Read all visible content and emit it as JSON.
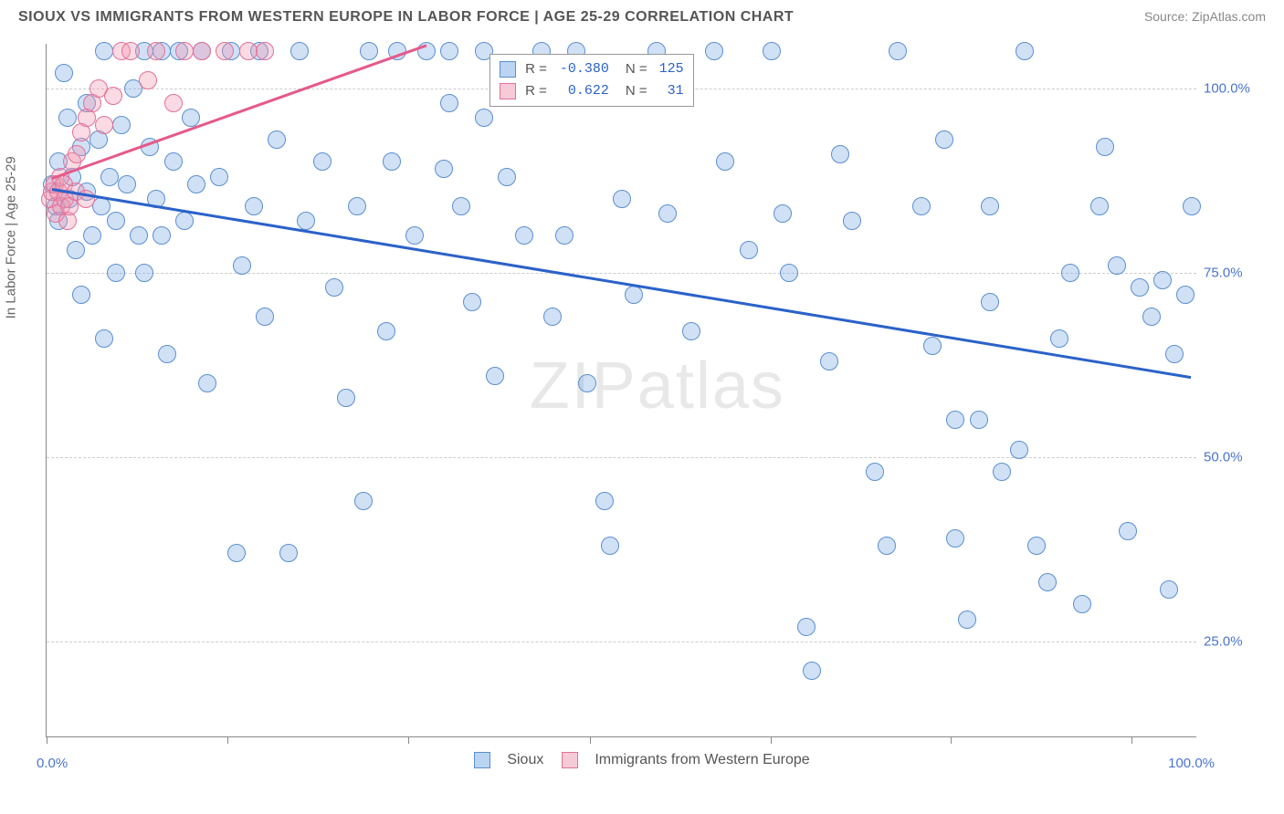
{
  "title": "SIOUX VS IMMIGRANTS FROM WESTERN EUROPE IN LABOR FORCE | AGE 25-29 CORRELATION CHART",
  "source_label": "Source: ",
  "source_value": "ZipAtlas.com",
  "y_axis_label": "In Labor Force | Age 25-29",
  "watermark": {
    "bold": "ZIP",
    "thin": "atlas"
  },
  "chart": {
    "type": "scatter",
    "xlim": [
      0,
      100
    ],
    "ylim": [
      12,
      106
    ],
    "x_tick_positions": [
      0,
      15.7,
      31.4,
      47.2,
      62.9,
      78.6,
      94.3
    ],
    "y_gridlines": [
      25,
      50,
      75,
      100
    ],
    "y_tick_labels": [
      "25.0%",
      "50.0%",
      "75.0%",
      "100.0%"
    ],
    "x_min_label": "0.0%",
    "x_max_label": "100.0%",
    "background_color": "#ffffff",
    "grid_color": "#cccccc",
    "axis_color": "#888888",
    "marker_radius": 10,
    "marker_opacity": 0.35,
    "series": [
      {
        "name": "Sioux",
        "color_fill": "#78aae6",
        "color_stroke": "#5b8fce",
        "R": "-0.380",
        "N": "125",
        "trend": {
          "x1": 0.5,
          "y1": 86.5,
          "x2": 99.5,
          "y2": 61,
          "color": "#2a62c9",
          "width": 2.5
        },
        "points": [
          [
            0.5,
            87
          ],
          [
            0.8,
            84
          ],
          [
            1,
            90
          ],
          [
            1,
            82
          ],
          [
            1.5,
            102
          ],
          [
            1.8,
            96
          ],
          [
            2,
            85
          ],
          [
            2.2,
            88
          ],
          [
            2.5,
            78
          ],
          [
            3,
            92
          ],
          [
            3,
            72
          ],
          [
            3.5,
            98
          ],
          [
            3.5,
            86
          ],
          [
            4,
            80
          ],
          [
            4.5,
            93
          ],
          [
            4.8,
            84
          ],
          [
            5,
            105
          ],
          [
            5,
            66
          ],
          [
            5.5,
            88
          ],
          [
            6,
            82
          ],
          [
            6,
            75
          ],
          [
            6.5,
            95
          ],
          [
            7,
            87
          ],
          [
            7.5,
            100
          ],
          [
            8,
            80
          ],
          [
            8.5,
            105
          ],
          [
            8.5,
            75
          ],
          [
            9,
            92
          ],
          [
            9.5,
            85
          ],
          [
            10,
            105
          ],
          [
            10,
            80
          ],
          [
            10.5,
            64
          ],
          [
            11,
            90
          ],
          [
            11.5,
            105
          ],
          [
            12,
            82
          ],
          [
            12.5,
            96
          ],
          [
            13,
            87
          ],
          [
            13.5,
            105
          ],
          [
            14,
            60
          ],
          [
            15,
            88
          ],
          [
            16,
            105
          ],
          [
            16.5,
            37
          ],
          [
            17,
            76
          ],
          [
            18,
            84
          ],
          [
            18.5,
            105
          ],
          [
            19,
            69
          ],
          [
            20,
            93
          ],
          [
            21,
            37
          ],
          [
            22,
            105
          ],
          [
            22.5,
            82
          ],
          [
            24,
            90
          ],
          [
            25,
            73
          ],
          [
            26,
            58
          ],
          [
            27,
            84
          ],
          [
            27.5,
            44
          ],
          [
            28,
            105
          ],
          [
            29.5,
            67
          ],
          [
            30,
            90
          ],
          [
            30.5,
            105
          ],
          [
            32,
            80
          ],
          [
            33,
            105
          ],
          [
            34.5,
            89
          ],
          [
            35,
            105
          ],
          [
            35,
            98
          ],
          [
            36,
            84
          ],
          [
            37,
            71
          ],
          [
            38,
            96
          ],
          [
            38,
            105
          ],
          [
            39,
            61
          ],
          [
            40,
            88
          ],
          [
            41.5,
            80
          ],
          [
            43,
            105
          ],
          [
            44,
            69
          ],
          [
            45,
            80
          ],
          [
            46,
            105
          ],
          [
            47,
            60
          ],
          [
            48.5,
            44
          ],
          [
            49,
            38
          ],
          [
            50,
            85
          ],
          [
            51,
            72
          ],
          [
            53,
            105
          ],
          [
            54,
            83
          ],
          [
            56,
            67
          ],
          [
            58,
            105
          ],
          [
            59,
            90
          ],
          [
            61,
            78
          ],
          [
            63,
            105
          ],
          [
            64.5,
            75
          ],
          [
            64,
            83
          ],
          [
            66,
            27
          ],
          [
            66.5,
            21
          ],
          [
            68,
            63
          ],
          [
            69,
            91
          ],
          [
            70,
            82
          ],
          [
            72,
            48
          ],
          [
            73,
            38
          ],
          [
            74,
            105
          ],
          [
            76,
            84
          ],
          [
            77,
            65
          ],
          [
            78,
            93
          ],
          [
            79,
            55
          ],
          [
            79,
            39
          ],
          [
            80,
            28
          ],
          [
            81,
            55
          ],
          [
            82,
            71
          ],
          [
            82,
            84
          ],
          [
            83,
            48
          ],
          [
            84.5,
            51
          ],
          [
            85,
            105
          ],
          [
            86,
            38
          ],
          [
            87,
            33
          ],
          [
            88,
            66
          ],
          [
            89,
            75
          ],
          [
            90,
            30
          ],
          [
            91.5,
            84
          ],
          [
            92,
            92
          ],
          [
            93,
            76
          ],
          [
            94,
            40
          ],
          [
            95,
            73
          ],
          [
            96,
            69
          ],
          [
            97,
            74
          ],
          [
            97.5,
            32
          ],
          [
            98,
            64
          ],
          [
            99,
            72
          ],
          [
            99.5,
            84
          ]
        ]
      },
      {
        "name": "Immigrants from Western Europe",
        "color_fill": "#f096af",
        "color_stroke": "#e27099",
        "R": "0.622",
        "N": "31",
        "trend": {
          "x1": 0.5,
          "y1": 88,
          "x2": 33,
          "y2": 106,
          "color": "#e55a8a",
          "width": 2.5
        },
        "points": [
          [
            0.3,
            85
          ],
          [
            0.5,
            86
          ],
          [
            0.7,
            87
          ],
          [
            0.8,
            83
          ],
          [
            1,
            86
          ],
          [
            1.2,
            88
          ],
          [
            1.3,
            84
          ],
          [
            1.5,
            87
          ],
          [
            1.6,
            85
          ],
          [
            1.8,
            82
          ],
          [
            2,
            84
          ],
          [
            2.2,
            90
          ],
          [
            2.5,
            86
          ],
          [
            2.6,
            91
          ],
          [
            3,
            94
          ],
          [
            3.4,
            85
          ],
          [
            3.5,
            96
          ],
          [
            4,
            98
          ],
          [
            4.5,
            100
          ],
          [
            5,
            95
          ],
          [
            5.8,
            99
          ],
          [
            6.5,
            105
          ],
          [
            7.3,
            105
          ],
          [
            8.8,
            101
          ],
          [
            9.5,
            105
          ],
          [
            11,
            98
          ],
          [
            12,
            105
          ],
          [
            13.5,
            105
          ],
          [
            15.5,
            105
          ],
          [
            17.5,
            105
          ],
          [
            19,
            105
          ]
        ]
      }
    ],
    "stats_box": {
      "left_pct": 38.5,
      "top_pct": 1.5
    }
  },
  "legend": {
    "series1": "Sioux",
    "series2": "Immigrants from Western Europe"
  },
  "stats_labels": {
    "R": "R =",
    "N": "N ="
  }
}
